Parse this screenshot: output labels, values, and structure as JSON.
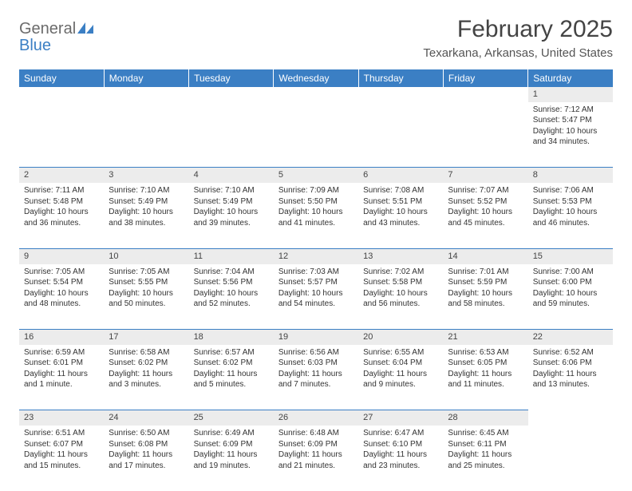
{
  "logo": {
    "text1": "General",
    "text2": "Blue"
  },
  "title": "February 2025",
  "location": "Texarkana, Arkansas, United States",
  "colors": {
    "header_bg": "#3b7fc4",
    "header_text": "#ffffff",
    "daynum_bg": "#ececec",
    "row_divider": "#3b7fc4",
    "body_text": "#333333",
    "title_text": "#444444",
    "logo_gray": "#6b6b6b",
    "logo_blue": "#3b7fc4"
  },
  "weekdays": [
    "Sunday",
    "Monday",
    "Tuesday",
    "Wednesday",
    "Thursday",
    "Friday",
    "Saturday"
  ],
  "weeks": [
    [
      null,
      null,
      null,
      null,
      null,
      null,
      {
        "n": "1",
        "sr": "Sunrise: 7:12 AM",
        "ss": "Sunset: 5:47 PM",
        "dl": "Daylight: 10 hours and 34 minutes."
      }
    ],
    [
      {
        "n": "2",
        "sr": "Sunrise: 7:11 AM",
        "ss": "Sunset: 5:48 PM",
        "dl": "Daylight: 10 hours and 36 minutes."
      },
      {
        "n": "3",
        "sr": "Sunrise: 7:10 AM",
        "ss": "Sunset: 5:49 PM",
        "dl": "Daylight: 10 hours and 38 minutes."
      },
      {
        "n": "4",
        "sr": "Sunrise: 7:10 AM",
        "ss": "Sunset: 5:49 PM",
        "dl": "Daylight: 10 hours and 39 minutes."
      },
      {
        "n": "5",
        "sr": "Sunrise: 7:09 AM",
        "ss": "Sunset: 5:50 PM",
        "dl": "Daylight: 10 hours and 41 minutes."
      },
      {
        "n": "6",
        "sr": "Sunrise: 7:08 AM",
        "ss": "Sunset: 5:51 PM",
        "dl": "Daylight: 10 hours and 43 minutes."
      },
      {
        "n": "7",
        "sr": "Sunrise: 7:07 AM",
        "ss": "Sunset: 5:52 PM",
        "dl": "Daylight: 10 hours and 45 minutes."
      },
      {
        "n": "8",
        "sr": "Sunrise: 7:06 AM",
        "ss": "Sunset: 5:53 PM",
        "dl": "Daylight: 10 hours and 46 minutes."
      }
    ],
    [
      {
        "n": "9",
        "sr": "Sunrise: 7:05 AM",
        "ss": "Sunset: 5:54 PM",
        "dl": "Daylight: 10 hours and 48 minutes."
      },
      {
        "n": "10",
        "sr": "Sunrise: 7:05 AM",
        "ss": "Sunset: 5:55 PM",
        "dl": "Daylight: 10 hours and 50 minutes."
      },
      {
        "n": "11",
        "sr": "Sunrise: 7:04 AM",
        "ss": "Sunset: 5:56 PM",
        "dl": "Daylight: 10 hours and 52 minutes."
      },
      {
        "n": "12",
        "sr": "Sunrise: 7:03 AM",
        "ss": "Sunset: 5:57 PM",
        "dl": "Daylight: 10 hours and 54 minutes."
      },
      {
        "n": "13",
        "sr": "Sunrise: 7:02 AM",
        "ss": "Sunset: 5:58 PM",
        "dl": "Daylight: 10 hours and 56 minutes."
      },
      {
        "n": "14",
        "sr": "Sunrise: 7:01 AM",
        "ss": "Sunset: 5:59 PM",
        "dl": "Daylight: 10 hours and 58 minutes."
      },
      {
        "n": "15",
        "sr": "Sunrise: 7:00 AM",
        "ss": "Sunset: 6:00 PM",
        "dl": "Daylight: 10 hours and 59 minutes."
      }
    ],
    [
      {
        "n": "16",
        "sr": "Sunrise: 6:59 AM",
        "ss": "Sunset: 6:01 PM",
        "dl": "Daylight: 11 hours and 1 minute."
      },
      {
        "n": "17",
        "sr": "Sunrise: 6:58 AM",
        "ss": "Sunset: 6:02 PM",
        "dl": "Daylight: 11 hours and 3 minutes."
      },
      {
        "n": "18",
        "sr": "Sunrise: 6:57 AM",
        "ss": "Sunset: 6:02 PM",
        "dl": "Daylight: 11 hours and 5 minutes."
      },
      {
        "n": "19",
        "sr": "Sunrise: 6:56 AM",
        "ss": "Sunset: 6:03 PM",
        "dl": "Daylight: 11 hours and 7 minutes."
      },
      {
        "n": "20",
        "sr": "Sunrise: 6:55 AM",
        "ss": "Sunset: 6:04 PM",
        "dl": "Daylight: 11 hours and 9 minutes."
      },
      {
        "n": "21",
        "sr": "Sunrise: 6:53 AM",
        "ss": "Sunset: 6:05 PM",
        "dl": "Daylight: 11 hours and 11 minutes."
      },
      {
        "n": "22",
        "sr": "Sunrise: 6:52 AM",
        "ss": "Sunset: 6:06 PM",
        "dl": "Daylight: 11 hours and 13 minutes."
      }
    ],
    [
      {
        "n": "23",
        "sr": "Sunrise: 6:51 AM",
        "ss": "Sunset: 6:07 PM",
        "dl": "Daylight: 11 hours and 15 minutes."
      },
      {
        "n": "24",
        "sr": "Sunrise: 6:50 AM",
        "ss": "Sunset: 6:08 PM",
        "dl": "Daylight: 11 hours and 17 minutes."
      },
      {
        "n": "25",
        "sr": "Sunrise: 6:49 AM",
        "ss": "Sunset: 6:09 PM",
        "dl": "Daylight: 11 hours and 19 minutes."
      },
      {
        "n": "26",
        "sr": "Sunrise: 6:48 AM",
        "ss": "Sunset: 6:09 PM",
        "dl": "Daylight: 11 hours and 21 minutes."
      },
      {
        "n": "27",
        "sr": "Sunrise: 6:47 AM",
        "ss": "Sunset: 6:10 PM",
        "dl": "Daylight: 11 hours and 23 minutes."
      },
      {
        "n": "28",
        "sr": "Sunrise: 6:45 AM",
        "ss": "Sunset: 6:11 PM",
        "dl": "Daylight: 11 hours and 25 minutes."
      },
      null
    ]
  ]
}
